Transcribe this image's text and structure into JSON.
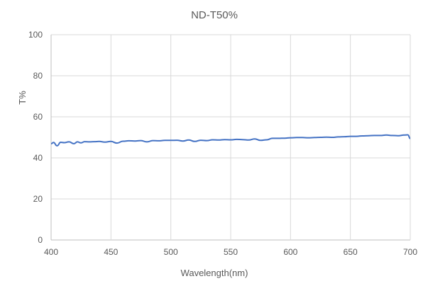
{
  "chart_data": {
    "type": "line",
    "title": "ND-T50%",
    "xlabel": "Wavelength(nm)",
    "ylabel": "T%",
    "xlim": [
      400,
      700
    ],
    "ylim": [
      0,
      100
    ],
    "x_ticks": [
      400,
      450,
      500,
      550,
      600,
      650,
      700
    ],
    "y_ticks": [
      0,
      20,
      40,
      60,
      80,
      100
    ],
    "grid": {
      "vertical": true,
      "horizontal": true
    },
    "legend": "none",
    "series": [
      {
        "name": "T%",
        "color": "#4472C4",
        "x": [
          400,
          402,
          405,
          408,
          411,
          415,
          419,
          422,
          425,
          428,
          432,
          436,
          440,
          445,
          450,
          455,
          460,
          465,
          470,
          475,
          480,
          485,
          490,
          495,
          500,
          505,
          510,
          515,
          520,
          525,
          530,
          535,
          540,
          545,
          550,
          555,
          560,
          565,
          570,
          575,
          580,
          585,
          590,
          595,
          600,
          605,
          610,
          615,
          620,
          625,
          630,
          635,
          640,
          645,
          650,
          655,
          660,
          665,
          670,
          675,
          680,
          685,
          690,
          695,
          698,
          700
        ],
        "y": [
          46.9,
          47.5,
          45.9,
          47.6,
          47.4,
          47.8,
          46.9,
          47.8,
          47.3,
          47.9,
          47.8,
          47.9,
          48.0,
          47.7,
          48.0,
          47.2,
          48.1,
          48.3,
          48.2,
          48.4,
          47.8,
          48.4,
          48.3,
          48.5,
          48.5,
          48.6,
          48.2,
          48.7,
          48.0,
          48.6,
          48.4,
          48.8,
          48.7,
          48.9,
          48.8,
          49.0,
          48.9,
          48.7,
          49.2,
          48.5,
          48.8,
          49.5,
          49.5,
          49.6,
          49.8,
          49.9,
          49.9,
          49.8,
          49.9,
          50.0,
          50.1,
          50.0,
          50.2,
          50.3,
          50.5,
          50.5,
          50.7,
          50.8,
          50.9,
          50.9,
          51.1,
          50.9,
          50.8,
          51.1,
          51.2,
          49.4
        ]
      }
    ]
  }
}
